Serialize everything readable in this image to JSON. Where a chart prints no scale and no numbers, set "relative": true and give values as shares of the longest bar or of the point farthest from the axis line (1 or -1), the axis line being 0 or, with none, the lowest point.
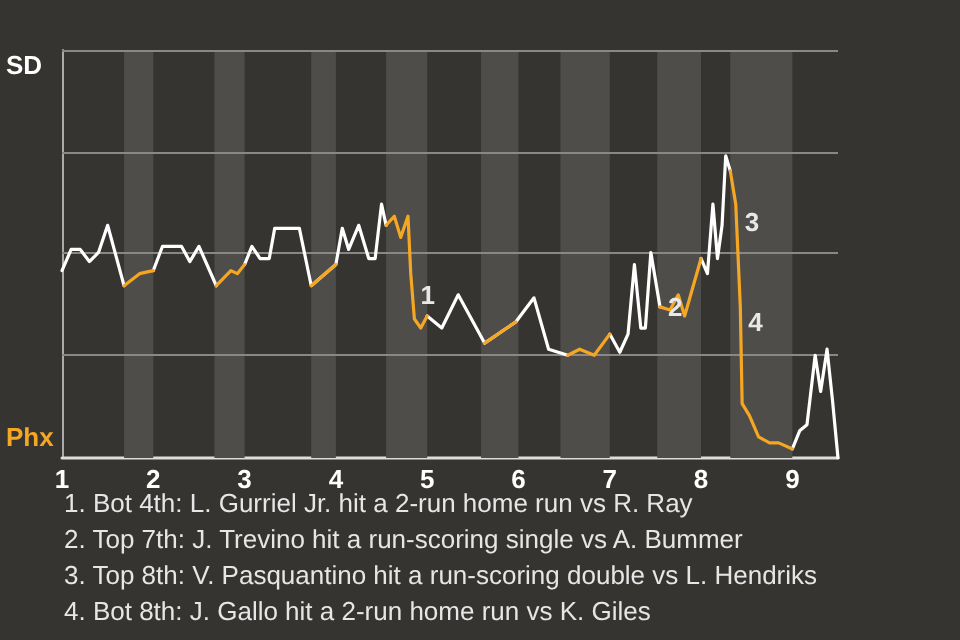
{
  "chart_data": {
    "type": "line",
    "relative": true,
    "x": [
      1,
      1.1,
      1.2,
      1.3,
      1.4,
      1.5,
      1.68,
      1.85,
      2,
      2.1,
      2.31,
      2.4,
      2.5,
      2.69,
      2.85,
      2.92,
      3,
      3.08,
      3.17,
      3.27,
      3.33,
      3.6,
      3.73,
      4,
      4.07,
      4.14,
      4.25,
      4.36,
      4.43,
      4.5,
      4.55,
      4.64,
      4.71,
      4.79,
      4.82,
      4.86,
      4.93,
      5,
      5.16,
      5.34,
      5.63,
      5.97,
      6.17,
      6.33,
      6.54,
      6.67,
      6.83,
      7,
      7.11,
      7.2,
      7.27,
      7.34,
      7.39,
      7.45,
      7.55,
      7.66,
      7.75,
      7.82,
      8,
      8.07,
      8.13,
      8.18,
      8.23,
      8.27,
      8.32,
      8.38,
      8.43,
      8.45,
      8.53,
      8.63,
      8.75,
      8.85,
      9,
      9.08,
      9.16,
      9.25,
      9.31,
      9.38,
      9.44,
      9.5
    ],
    "series": [
      {
        "name": "SD",
        "color": "#ffffff",
        "values": [
          0.62,
          0.69,
          0.69,
          0.65,
          0.68,
          0.77,
          0.57,
          null,
          0.62,
          0.7,
          0.7,
          0.65,
          0.7,
          0.57,
          null,
          null,
          0.64,
          0.7,
          0.66,
          0.66,
          0.76,
          0.76,
          0.57,
          0.64,
          0.76,
          0.69,
          0.77,
          0.66,
          0.66,
          0.84,
          0.77,
          null,
          null,
          null,
          null,
          null,
          null,
          0.47,
          0.43,
          0.54,
          0.38,
          0.45,
          0.53,
          0.36,
          0.34,
          null,
          null,
          0.41,
          0.35,
          0.41,
          0.64,
          0.43,
          0.43,
          0.68,
          0.5,
          null,
          null,
          null,
          0.66,
          0.61,
          0.84,
          0.66,
          0.77,
          1,
          0.95,
          null,
          null,
          null,
          null,
          null,
          null,
          null,
          0.03,
          0.09,
          0.11,
          0.34,
          0.22,
          0.36,
          0.19,
          0
        ]
      },
      {
        "name": "Phx",
        "color": "#f5a623",
        "values": [
          null,
          null,
          null,
          null,
          null,
          null,
          0.57,
          0.61,
          0.62,
          null,
          null,
          null,
          null,
          0.57,
          0.62,
          0.61,
          0.64,
          null,
          null,
          null,
          null,
          null,
          0.57,
          0.64,
          null,
          null,
          null,
          null,
          null,
          null,
          0.77,
          0.8,
          0.73,
          0.8,
          0.61,
          0.46,
          0.43,
          0.47,
          null,
          null,
          0.38,
          0.45,
          null,
          null,
          0.34,
          0.36,
          0.34,
          0.41,
          null,
          null,
          null,
          null,
          null,
          null,
          0.5,
          0.49,
          0.54,
          0.47,
          0.66,
          null,
          null,
          null,
          null,
          null,
          0.95,
          0.84,
          0.5,
          0.18,
          0.14,
          0.07,
          0.05,
          0.05,
          0.03,
          null,
          null,
          null,
          null,
          null,
          null,
          null
        ]
      }
    ],
    "xlim": [
      1,
      9.5
    ],
    "xticks": [
      1,
      2,
      3,
      4,
      5,
      6,
      7,
      8,
      9
    ],
    "tick_labels": "x",
    "legend": "left",
    "ref_lines": [
      {
        "axis": "y",
        "value": 0.34,
        "color": "#8a8886"
      },
      {
        "axis": "y",
        "value": 0.68,
        "color": "#8a8886"
      },
      {
        "axis": "y",
        "value": 1.01,
        "color": "#8a8886"
      },
      {
        "axis": "y",
        "value": 1.35,
        "color": "#8a8886"
      }
    ],
    "bands": [
      {
        "axis": "x",
        "from": 1.68,
        "to": 2,
        "color": "#4f4d4a"
      },
      {
        "axis": "x",
        "from": 2.67,
        "to": 3,
        "color": "#4f4d4a"
      },
      {
        "axis": "x",
        "from": 3.73,
        "to": 4,
        "color": "#4f4d4a"
      },
      {
        "axis": "x",
        "from": 4.55,
        "to": 5,
        "color": "#4f4d4a"
      },
      {
        "axis": "x",
        "from": 5.59,
        "to": 6,
        "color": "#4f4d4a"
      },
      {
        "axis": "x",
        "from": 6.46,
        "to": 7,
        "color": "#4f4d4a"
      },
      {
        "axis": "x",
        "from": 7.52,
        "to": 8,
        "color": "#4f4d4a"
      },
      {
        "axis": "x",
        "from": 8.32,
        "to": 9,
        "color": "#4f4d4a"
      }
    ],
    "annotations": [
      {
        "text": "1",
        "x": 4.84,
        "y": 0.54
      },
      {
        "text": "2",
        "x": 7.55,
        "y": 0.5
      },
      {
        "text": "3",
        "x": 8.39,
        "y": 0.78
      },
      {
        "text": "4",
        "x": 8.43,
        "y": 0.45
      },
      "1. Bot 4th: L. Gurriel Jr. hit a 2-run home run vs R. Ray",
      "2. Top 7th: J. Trevino hit a run-scoring single vs A. Bummer",
      "3. Top 8th: V. Pasquantino hit a run-scoring double vs L. Hendriks",
      "4. Bot 8th: J. Gallo hit a 2-run home run vs K. Giles"
    ]
  }
}
